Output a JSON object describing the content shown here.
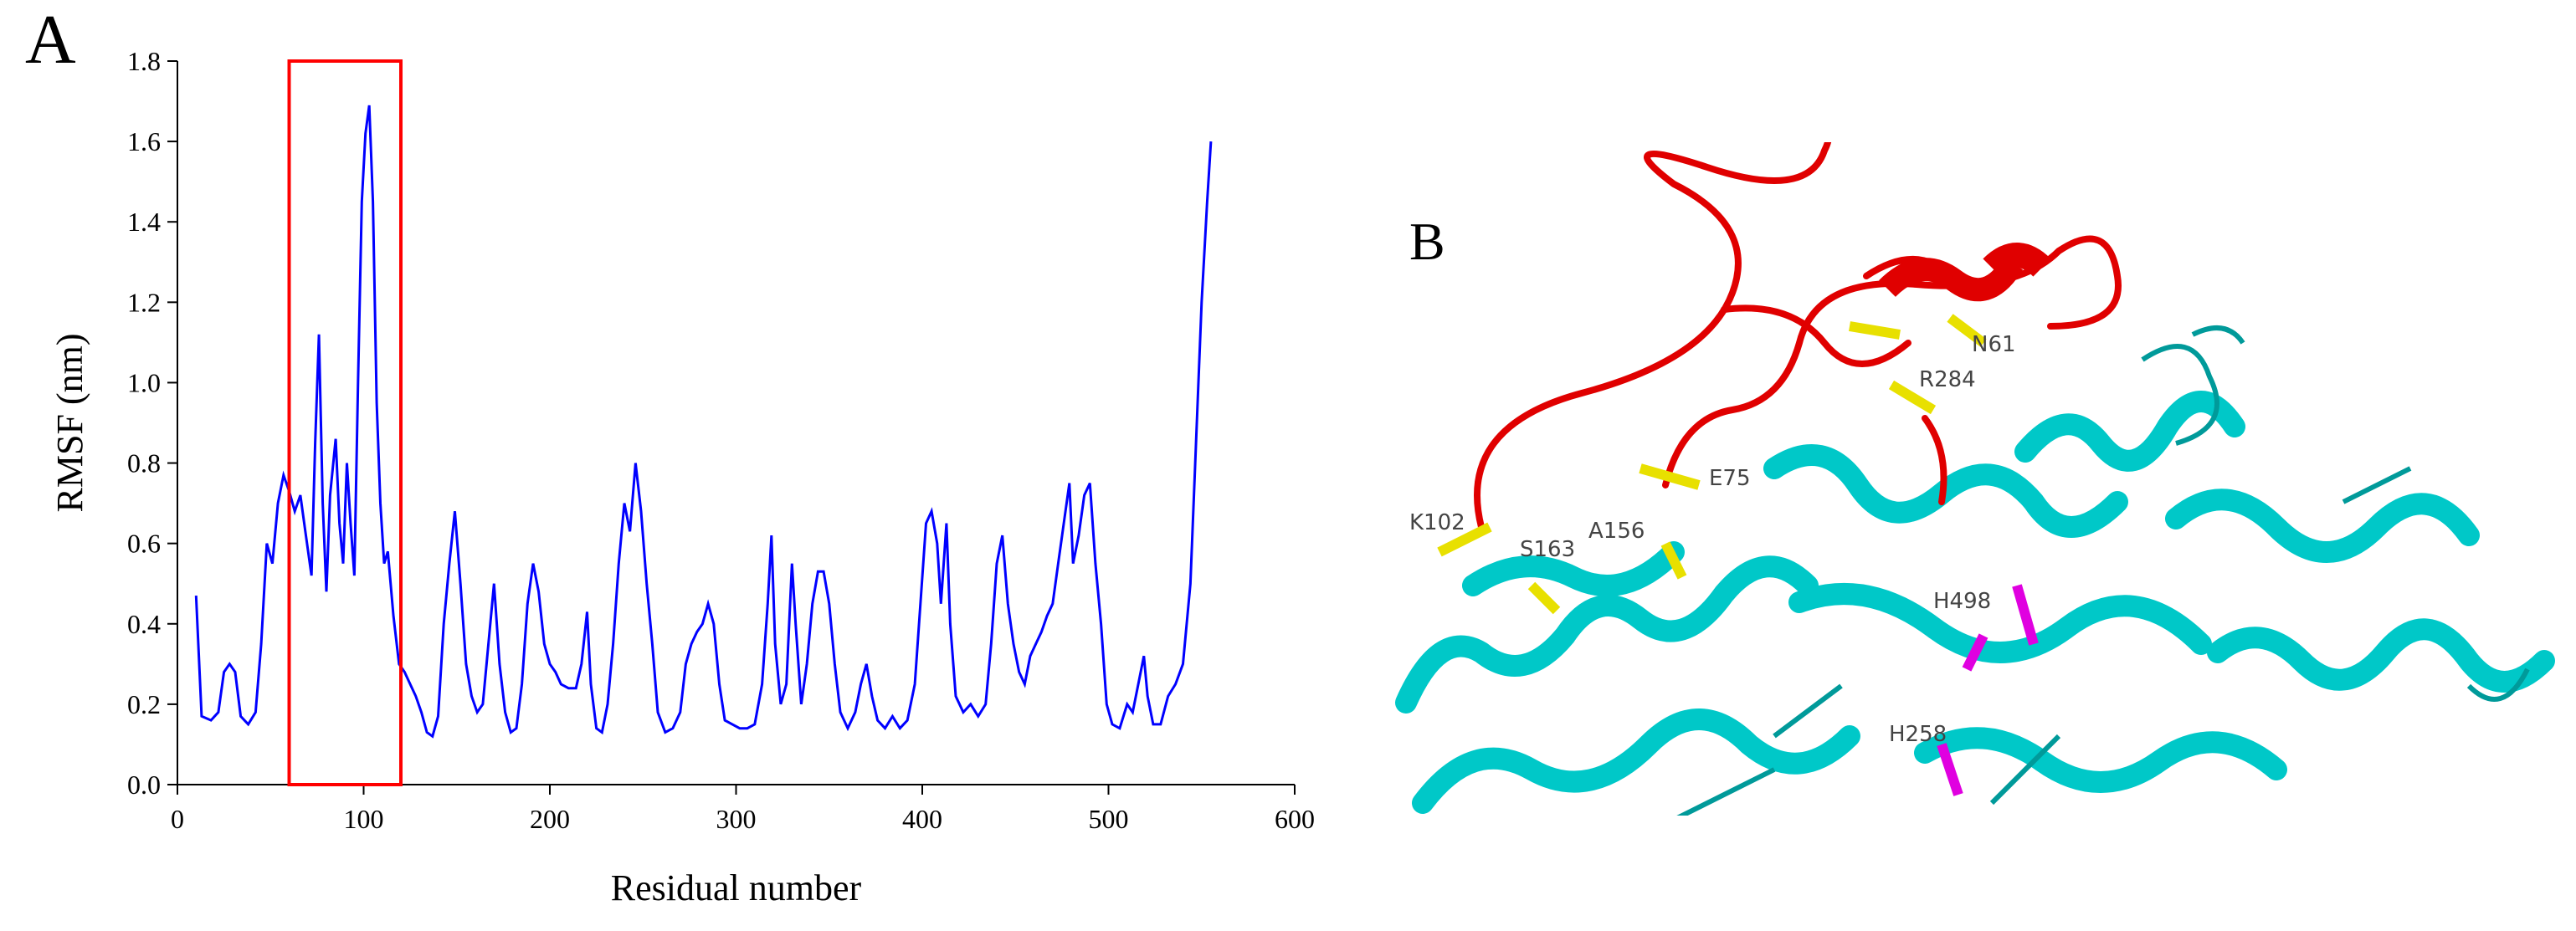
{
  "panel_labels": [
    "A",
    "B"
  ],
  "chart_data": {
    "type": "line",
    "xlabel": "Residual number",
    "ylabel": "RMSF (nm)",
    "x": [
      10,
      13,
      18,
      22,
      25,
      28,
      31,
      34,
      38,
      42,
      45,
      48,
      51,
      54,
      57,
      60,
      63,
      66,
      69,
      72,
      74,
      76,
      78,
      80,
      82,
      85,
      87,
      89,
      91,
      93,
      95,
      97,
      99,
      101,
      103,
      105,
      107,
      109,
      111,
      113,
      116,
      119,
      122,
      125,
      128,
      131,
      134,
      137,
      140,
      143,
      146,
      149,
      152,
      155,
      158,
      161,
      164,
      167,
      170,
      173,
      176,
      179,
      182,
      185,
      188,
      191,
      194,
      197,
      200,
      203,
      206,
      210,
      214,
      217,
      220,
      222,
      225,
      228,
      231,
      234,
      237,
      240,
      243,
      246,
      249,
      252,
      255,
      258,
      262,
      266,
      270,
      273,
      276,
      279,
      282,
      285,
      288,
      291,
      294,
      298,
      302,
      306,
      310,
      314,
      317,
      319,
      321,
      324,
      327,
      330,
      332,
      335,
      338,
      341,
      344,
      347,
      350,
      353,
      356,
      360,
      364,
      367,
      370,
      373,
      376,
      380,
      384,
      388,
      392,
      396,
      399,
      402,
      405,
      408,
      410,
      413,
      415,
      418,
      422,
      426,
      430,
      434,
      437,
      440,
      443,
      446,
      449,
      452,
      455,
      458,
      461,
      464,
      467,
      470,
      473,
      476,
      479,
      481,
      484,
      487,
      490,
      493,
      496,
      499,
      502,
      506,
      510,
      513,
      516,
      519,
      521,
      524,
      528,
      532,
      536,
      540,
      544,
      547,
      550,
      553,
      555
    ],
    "values": [
      0.47,
      0.17,
      0.16,
      0.18,
      0.28,
      0.3,
      0.28,
      0.17,
      0.15,
      0.18,
      0.35,
      0.6,
      0.55,
      0.7,
      0.77,
      0.73,
      0.68,
      0.72,
      0.62,
      0.52,
      0.85,
      1.12,
      0.7,
      0.48,
      0.72,
      0.86,
      0.65,
      0.55,
      0.8,
      0.65,
      0.52,
      1.0,
      1.45,
      1.62,
      1.69,
      1.45,
      0.95,
      0.7,
      0.55,
      0.58,
      0.42,
      0.3,
      0.28,
      0.25,
      0.22,
      0.18,
      0.13,
      0.12,
      0.17,
      0.4,
      0.55,
      0.68,
      0.5,
      0.3,
      0.22,
      0.18,
      0.2,
      0.35,
      0.5,
      0.3,
      0.18,
      0.13,
      0.14,
      0.25,
      0.45,
      0.55,
      0.48,
      0.35,
      0.3,
      0.28,
      0.25,
      0.24,
      0.24,
      0.3,
      0.43,
      0.25,
      0.14,
      0.13,
      0.2,
      0.35,
      0.55,
      0.7,
      0.63,
      0.8,
      0.68,
      0.5,
      0.35,
      0.18,
      0.13,
      0.14,
      0.18,
      0.3,
      0.35,
      0.38,
      0.4,
      0.45,
      0.4,
      0.25,
      0.16,
      0.15,
      0.14,
      0.14,
      0.15,
      0.25,
      0.45,
      0.62,
      0.35,
      0.2,
      0.25,
      0.55,
      0.4,
      0.2,
      0.3,
      0.45,
      0.53,
      0.53,
      0.45,
      0.3,
      0.18,
      0.14,
      0.18,
      0.25,
      0.3,
      0.22,
      0.16,
      0.14,
      0.17,
      0.14,
      0.16,
      0.25,
      0.45,
      0.65,
      0.68,
      0.6,
      0.45,
      0.65,
      0.4,
      0.22,
      0.18,
      0.2,
      0.17,
      0.2,
      0.35,
      0.55,
      0.62,
      0.45,
      0.35,
      0.28,
      0.25,
      0.32,
      0.35,
      0.38,
      0.42,
      0.45,
      0.55,
      0.65,
      0.75,
      0.55,
      0.62,
      0.72,
      0.75,
      0.55,
      0.4,
      0.2,
      0.15,
      0.14,
      0.2,
      0.18,
      0.25,
      0.32,
      0.22,
      0.15,
      0.15,
      0.22,
      0.25,
      0.3,
      0.5,
      0.85,
      1.2,
      1.45,
      1.6
    ],
    "color": "#0000ff",
    "xlim": [
      0,
      600
    ],
    "xticks": [
      0,
      100,
      200,
      300,
      400,
      500,
      600
    ],
    "ylim": [
      0,
      1.8
    ],
    "yticks": [
      {
        "value": 0,
        "label": "0.0"
      },
      0.2,
      0.4,
      0.6,
      0.8,
      {
        "value": 1,
        "label": "1.0"
      },
      1.2,
      1.4,
      1.6,
      1.8
    ],
    "highlight_x": [
      60,
      120
    ],
    "highlight_color": "#ff0000"
  },
  "structure": {
    "labels": [
      "N61",
      "R284",
      "E75",
      "K102",
      "S163",
      "A156",
      "H498",
      "H258"
    ]
  }
}
